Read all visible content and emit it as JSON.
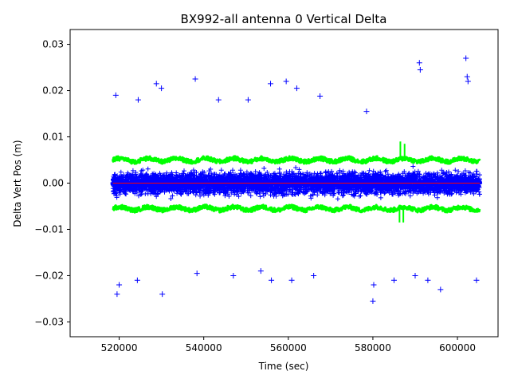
{
  "chart_data": {
    "type": "scatter",
    "title": "BX992-all antenna 0 Vertical Delta",
    "xlabel": "Time (sec)",
    "ylabel": "Delta Vert Pos (m)",
    "xlim": [
      508400,
      609600
    ],
    "ylim": [
      -0.0332,
      0.0332
    ],
    "x_range_data": [
      518500,
      605300
    ],
    "xticks": [
      520000,
      540000,
      560000,
      580000,
      600000
    ],
    "xtick_labels": [
      "520000",
      "540000",
      "560000",
      "580000",
      "600000"
    ],
    "yticks": [
      -0.03,
      -0.02,
      -0.01,
      0.0,
      0.01,
      0.02,
      0.03
    ],
    "ytick_labels": [
      "−0.03",
      "−0.02",
      "−0.01",
      "0.00",
      "0.01",
      "0.02",
      "0.03"
    ],
    "grid": false,
    "legend": "none",
    "series": [
      {
        "role": "delta-points",
        "marker": "+",
        "color": "#0000ff",
        "typical_min": -0.015,
        "typical_max": 0.015,
        "points": [
          [
            519200,
            0.019
          ],
          [
            519500,
            -0.024
          ],
          [
            520000,
            -0.022
          ],
          [
            524500,
            0.018
          ],
          [
            524300,
            -0.021
          ],
          [
            528800,
            0.0215
          ],
          [
            530000,
            0.0205
          ],
          [
            530200,
            -0.024
          ],
          [
            538000,
            0.0225
          ],
          [
            538400,
            -0.0195
          ],
          [
            543500,
            0.018
          ],
          [
            547000,
            -0.02
          ],
          [
            550500,
            0.018
          ],
          [
            553500,
            -0.019
          ],
          [
            555800,
            0.0215
          ],
          [
            556000,
            -0.021
          ],
          [
            559500,
            0.022
          ],
          [
            560800,
            -0.021
          ],
          [
            562000,
            0.0205
          ],
          [
            566000,
            -0.02
          ],
          [
            567500,
            0.0188
          ],
          [
            578500,
            0.0155
          ],
          [
            580000,
            -0.0255
          ],
          [
            580200,
            -0.022
          ],
          [
            585000,
            -0.021
          ],
          [
            590000,
            -0.02
          ],
          [
            591000,
            0.026
          ],
          [
            591200,
            0.0245
          ],
          [
            593000,
            -0.021
          ],
          [
            596000,
            -0.023
          ],
          [
            602000,
            0.027
          ],
          [
            602300,
            0.023
          ],
          [
            602500,
            0.022
          ],
          [
            604500,
            -0.021
          ]
        ]
      },
      {
        "role": "upper-bound",
        "color": "#00ff00",
        "level": 0.005,
        "features": [
          {
            "x": 586500,
            "value": 0.009
          },
          {
            "x": 587500,
            "value": 0.0085
          }
        ]
      },
      {
        "role": "lower-bound",
        "color": "#00ff00",
        "level": -0.0055,
        "features": [
          {
            "x": 586300,
            "value": -0.0085
          },
          {
            "x": 587200,
            "value": -0.0085
          }
        ]
      },
      {
        "role": "zero-line",
        "color": "#ff0000",
        "level": 0.0
      }
    ]
  }
}
